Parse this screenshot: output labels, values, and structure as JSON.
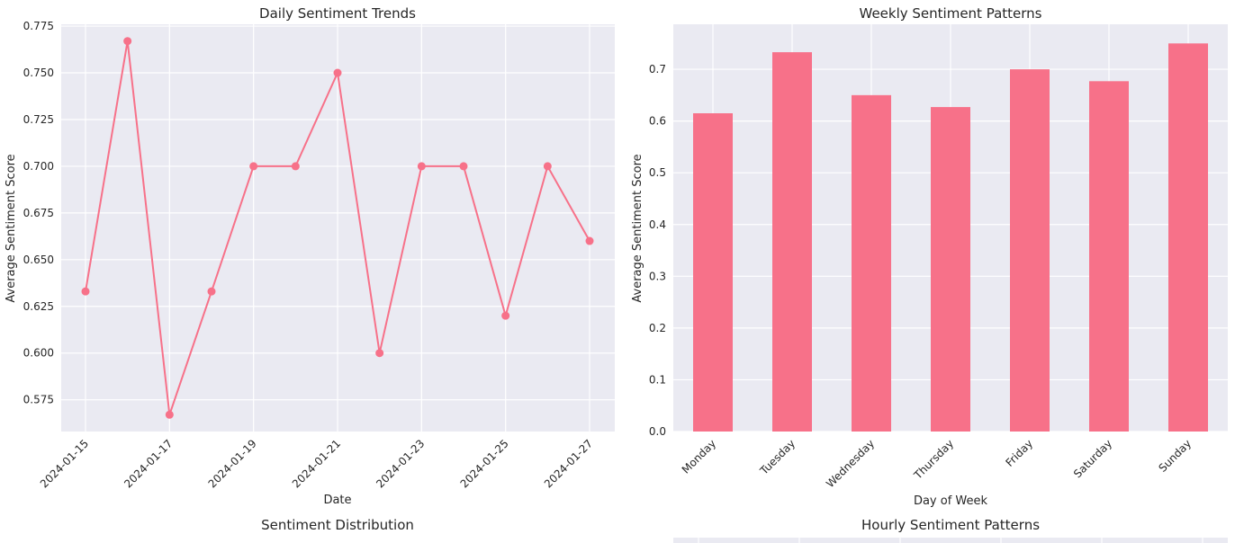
{
  "chart_data": [
    {
      "type": "line",
      "title": "Daily Sentiment Trends",
      "xlabel": "Date",
      "ylabel": "Average Sentiment Score",
      "x": [
        "2024-01-15",
        "2024-01-16",
        "2024-01-17",
        "2024-01-18",
        "2024-01-19",
        "2024-01-20",
        "2024-01-21",
        "2024-01-22",
        "2024-01-23",
        "2024-01-24",
        "2024-01-25",
        "2024-01-26",
        "2024-01-27"
      ],
      "y": [
        0.633,
        0.767,
        0.567,
        0.633,
        0.7,
        0.7,
        0.75,
        0.6,
        0.7,
        0.7,
        0.62,
        0.7,
        0.66
      ],
      "xticks": [
        "2024-01-15",
        "2024-01-17",
        "2024-01-19",
        "2024-01-21",
        "2024-01-23",
        "2024-01-25",
        "2024-01-27"
      ],
      "yticks": [
        "0.575",
        "0.600",
        "0.625",
        "0.650",
        "0.675",
        "0.700",
        "0.725",
        "0.750",
        "0.775"
      ],
      "ylim": [
        0.558,
        0.776
      ],
      "color": "#f77189",
      "grid": true
    },
    {
      "type": "bar",
      "title": "Weekly Sentiment Patterns",
      "xlabel": "Day of Week",
      "ylabel": "Average Sentiment Score",
      "categories": [
        "Monday",
        "Tuesday",
        "Wednesday",
        "Thursday",
        "Friday",
        "Saturday",
        "Sunday"
      ],
      "values": [
        0.615,
        0.733,
        0.65,
        0.627,
        0.7,
        0.677,
        0.75
      ],
      "yticks": [
        "0.0",
        "0.1",
        "0.2",
        "0.3",
        "0.4",
        "0.5",
        "0.6",
        "0.7"
      ],
      "ylim": [
        0,
        0.787
      ],
      "color": "#f77189",
      "grid": true
    }
  ],
  "lower_titles": {
    "left": "Sentiment Distribution",
    "right": "Hourly Sentiment Patterns"
  }
}
